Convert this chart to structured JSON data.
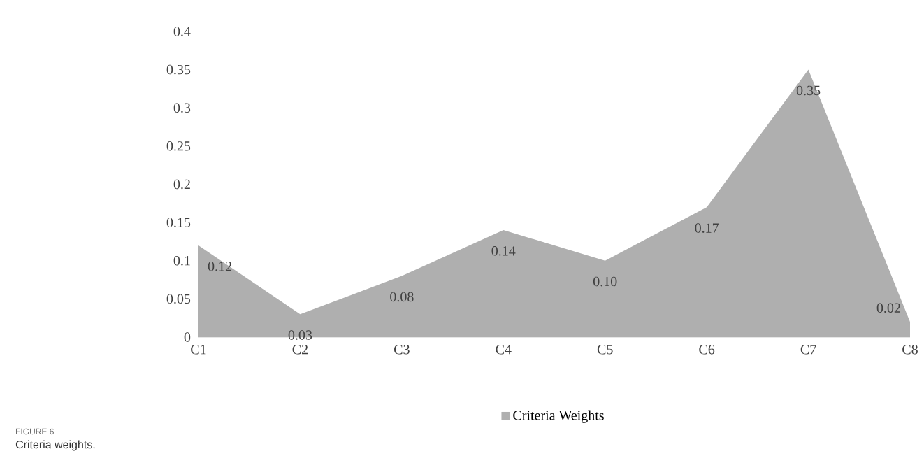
{
  "chart_data": {
    "type": "area",
    "categories": [
      "C1",
      "C2",
      "C3",
      "C4",
      "C5",
      "C6",
      "C7",
      "C8"
    ],
    "series": [
      {
        "name": "Criteria Weights",
        "color": "#afafaf",
        "values": [
          0.12,
          0.03,
          0.08,
          0.14,
          0.1,
          0.17,
          0.35,
          0.02
        ],
        "value_labels": [
          "0.12",
          "0.03",
          "0.08",
          "0.14",
          "0.10",
          "0.17",
          "0.35",
          "0.02"
        ]
      }
    ],
    "ylim": [
      0,
      0.4
    ],
    "yticks": [
      0,
      0.05,
      0.1,
      0.15,
      0.2,
      0.25,
      0.3,
      0.35,
      0.4
    ],
    "legend": "bottom",
    "annotations": [
      "FIGURE 6",
      "Criteria weights."
    ]
  }
}
